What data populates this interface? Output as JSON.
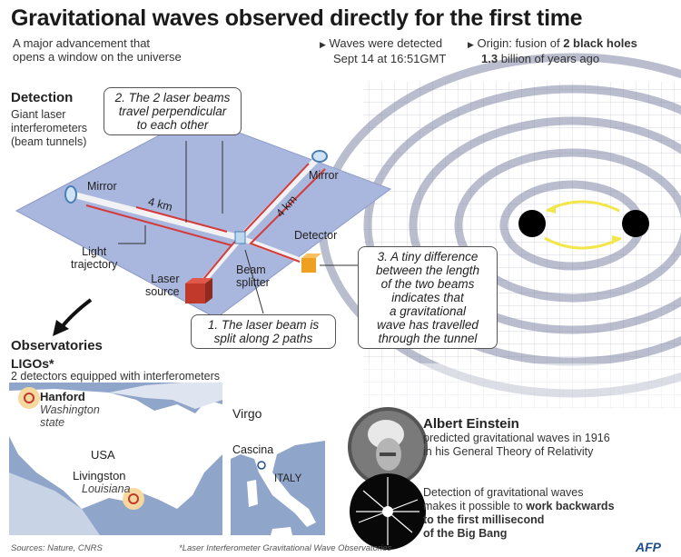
{
  "header": {
    "title": "Gravitational waves observed directly for the first time",
    "subtitle_line1": "A major advancement that",
    "subtitle_line2": "opens a window on the universe",
    "fact1_line1": "Waves were detected",
    "fact1_line2": "Sept 14 at 16:51GMT",
    "fact2_line1_prefix": "Origin: fusion of ",
    "fact2_line1_bold": "2 black holes",
    "fact2_line2_bold": "1.3",
    "fact2_line2_rest": " billion of years ago"
  },
  "detection": {
    "heading": "Detection",
    "desc_line1": "Giant laser",
    "desc_line2": "interferometers",
    "desc_line3": "(beam tunnels)",
    "labels": {
      "mirror_left": "Mirror",
      "mirror_right": "Mirror",
      "arm_left": "4 km",
      "arm_right": "4 km",
      "detector": "Detector",
      "light_line1": "Light",
      "light_line2": "trajectory",
      "laser_line1": "Laser",
      "laser_line2": "source",
      "beam_line1": "Beam",
      "beam_line2": "splitter"
    },
    "callouts": {
      "c2_line1": "2. The 2 laser beams",
      "c2_line2": "travel perpendicular",
      "c2_line3": "to each other",
      "c1_line1": "1. The laser beam is",
      "c1_line2": "split along 2 paths",
      "c3_line1": "3. A tiny difference",
      "c3_line2": "between the length",
      "c3_line3": "of the two beams",
      "c3_line4": "indicates that",
      "c3_line5": "a gravitational",
      "c3_line6": "wave has travelled",
      "c3_line7": "through the tunnel"
    }
  },
  "observatories": {
    "heading": "Observatories",
    "ligo_heading": "LIGOs*",
    "ligo_desc": "2 detectors equipped with interferometers",
    "hanford": "Hanford",
    "hanford_state_line1": "Washington",
    "hanford_state_line2": "state",
    "usa": "USA",
    "livingston": "Livingston",
    "livingston_state": "Louisiana",
    "virgo": "Virgo",
    "cascina": "Cascina",
    "italy": "ITALY"
  },
  "einstein": {
    "name": "Albert Einstein",
    "line1": "predicted gravitational waves in 1916",
    "line2": "in his General Theory of Relativity"
  },
  "bigbang": {
    "line1": "Detection of gravitational waves",
    "line2_prefix": "makes it possible to ",
    "line2_bold": "work backwards",
    "line3": "to the first millisecond",
    "line4": "of the Big Bang"
  },
  "footer": {
    "sources": "Sources: Nature, CNRS",
    "footnote": "*Laser Interferometer Gravitational Wave Observatories",
    "logo": "AFP"
  },
  "colors": {
    "plate": "#a9b6dd",
    "beam": "#d43a3a",
    "laser_source": "#c0392b",
    "detector": "#f0a020",
    "map_land": "#ffffff",
    "map_water": "#8fa5c9",
    "site_highlight": "#f7d9a0",
    "orbit_arrows": "#f3e64a"
  }
}
